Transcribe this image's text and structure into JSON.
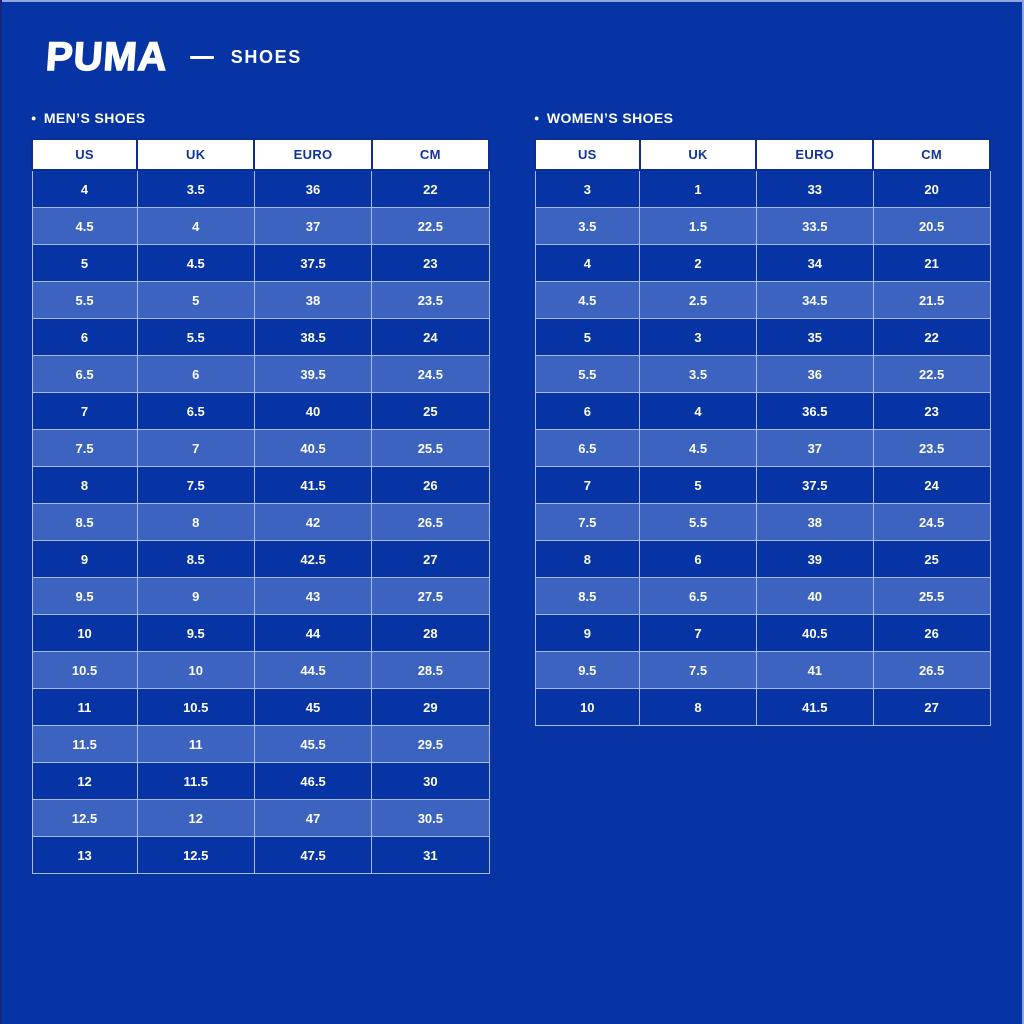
{
  "page": {
    "colors": {
      "background": "#0734a4",
      "row_dark": "#0734a4",
      "row_light": "#3d63c1",
      "cell_border": "#a8b9ea",
      "header_bg": "#ffffff",
      "header_text": "#10339c",
      "header_border": "#0c2d92",
      "text": "#ffffff",
      "edge_top": "#8ea6dd",
      "edge_dark": "#14277c"
    }
  },
  "brand": {
    "logo": "PUMA",
    "divider_icon": "em-dash",
    "subtitle": "SHOES"
  },
  "sections": [
    {
      "id": "mens",
      "bullet": "●",
      "label": "MEN’S SHOES",
      "columns": [
        "US",
        "UK",
        "EURO",
        "CM"
      ],
      "rows": [
        [
          "4",
          "3.5",
          "36",
          "22"
        ],
        [
          "4.5",
          "4",
          "37",
          "22.5"
        ],
        [
          "5",
          "4.5",
          "37.5",
          "23"
        ],
        [
          "5.5",
          "5",
          "38",
          "23.5"
        ],
        [
          "6",
          "5.5",
          "38.5",
          "24"
        ],
        [
          "6.5",
          "6",
          "39.5",
          "24.5"
        ],
        [
          "7",
          "6.5",
          "40",
          "25"
        ],
        [
          "7.5",
          "7",
          "40.5",
          "25.5"
        ],
        [
          "8",
          "7.5",
          "41.5",
          "26"
        ],
        [
          "8.5",
          "8",
          "42",
          "26.5"
        ],
        [
          "9",
          "8.5",
          "42.5",
          "27"
        ],
        [
          "9.5",
          "9",
          "43",
          "27.5"
        ],
        [
          "10",
          "9.5",
          "44",
          "28"
        ],
        [
          "10.5",
          "10",
          "44.5",
          "28.5"
        ],
        [
          "11",
          "10.5",
          "45",
          "29"
        ],
        [
          "11.5",
          "11",
          "45.5",
          "29.5"
        ],
        [
          "12",
          "11.5",
          "46.5",
          "30"
        ],
        [
          "12.5",
          "12",
          "47",
          "30.5"
        ],
        [
          "13",
          "12.5",
          "47.5",
          "31"
        ]
      ]
    },
    {
      "id": "womens",
      "bullet": "●",
      "label": "WOMEN’S SHOES",
      "columns": [
        "US",
        "UK",
        "EURO",
        "CM"
      ],
      "rows": [
        [
          "3",
          "1",
          "33",
          "20"
        ],
        [
          "3.5",
          "1.5",
          "33.5",
          "20.5"
        ],
        [
          "4",
          "2",
          "34",
          "21"
        ],
        [
          "4.5",
          "2.5",
          "34.5",
          "21.5"
        ],
        [
          "5",
          "3",
          "35",
          "22"
        ],
        [
          "5.5",
          "3.5",
          "36",
          "22.5"
        ],
        [
          "6",
          "4",
          "36.5",
          "23"
        ],
        [
          "6.5",
          "4.5",
          "37",
          "23.5"
        ],
        [
          "7",
          "5",
          "37.5",
          "24"
        ],
        [
          "7.5",
          "5.5",
          "38",
          "24.5"
        ],
        [
          "8",
          "6",
          "39",
          "25"
        ],
        [
          "8.5",
          "6.5",
          "40",
          "25.5"
        ],
        [
          "9",
          "7",
          "40.5",
          "26"
        ],
        [
          "9.5",
          "7.5",
          "41",
          "26.5"
        ],
        [
          "10",
          "8",
          "41.5",
          "27"
        ]
      ]
    }
  ]
}
